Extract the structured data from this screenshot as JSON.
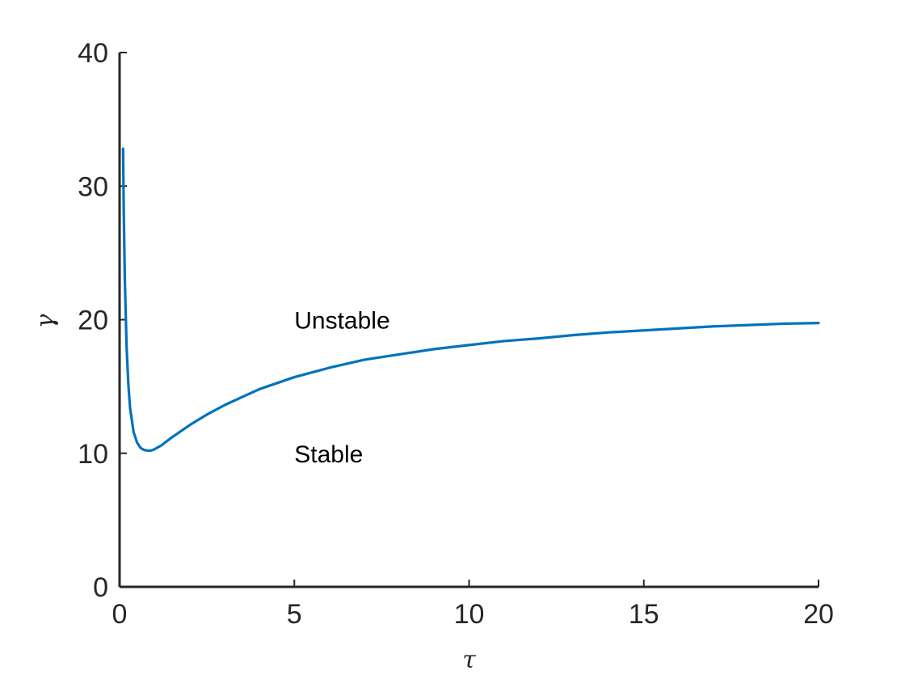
{
  "chart_data": {
    "type": "line",
    "title": "",
    "xlabel": "τ",
    "ylabel": "γ",
    "xlim": [
      0,
      20
    ],
    "ylim": [
      0,
      40
    ],
    "xticks": [
      0,
      5,
      10,
      15,
      20
    ],
    "yticks": [
      0,
      10,
      20,
      30,
      40
    ],
    "xtick_labels": [
      "0",
      "5",
      "10",
      "15",
      "20"
    ],
    "ytick_labels": [
      "0",
      "10",
      "20",
      "30",
      "40"
    ],
    "grid": false,
    "series": [
      {
        "color": "#0072BD",
        "x": [
          0.1,
          0.12,
          0.15,
          0.2,
          0.25,
          0.3,
          0.4,
          0.5,
          0.6,
          0.7,
          0.8,
          0.9,
          1.0,
          1.2,
          1.5,
          2,
          2.5,
          3,
          3.5,
          4,
          5,
          6,
          7,
          8,
          9,
          10,
          11,
          12,
          13,
          14,
          15,
          16,
          17,
          18,
          19,
          20
        ],
        "y": [
          32.8,
          28.0,
          23.0,
          18.0,
          15.2,
          13.4,
          11.6,
          10.8,
          10.4,
          10.25,
          10.2,
          10.2,
          10.3,
          10.6,
          11.2,
          12.1,
          12.9,
          13.6,
          14.2,
          14.8,
          15.7,
          16.4,
          17.0,
          17.4,
          17.8,
          18.1,
          18.4,
          18.6,
          18.85,
          19.05,
          19.2,
          19.35,
          19.5,
          19.6,
          19.7,
          19.75
        ]
      }
    ],
    "annotations": [
      {
        "text": "Unstable",
        "x": 5,
        "y": 20
      },
      {
        "text": "Stable",
        "x": 5,
        "y": 10
      }
    ]
  }
}
